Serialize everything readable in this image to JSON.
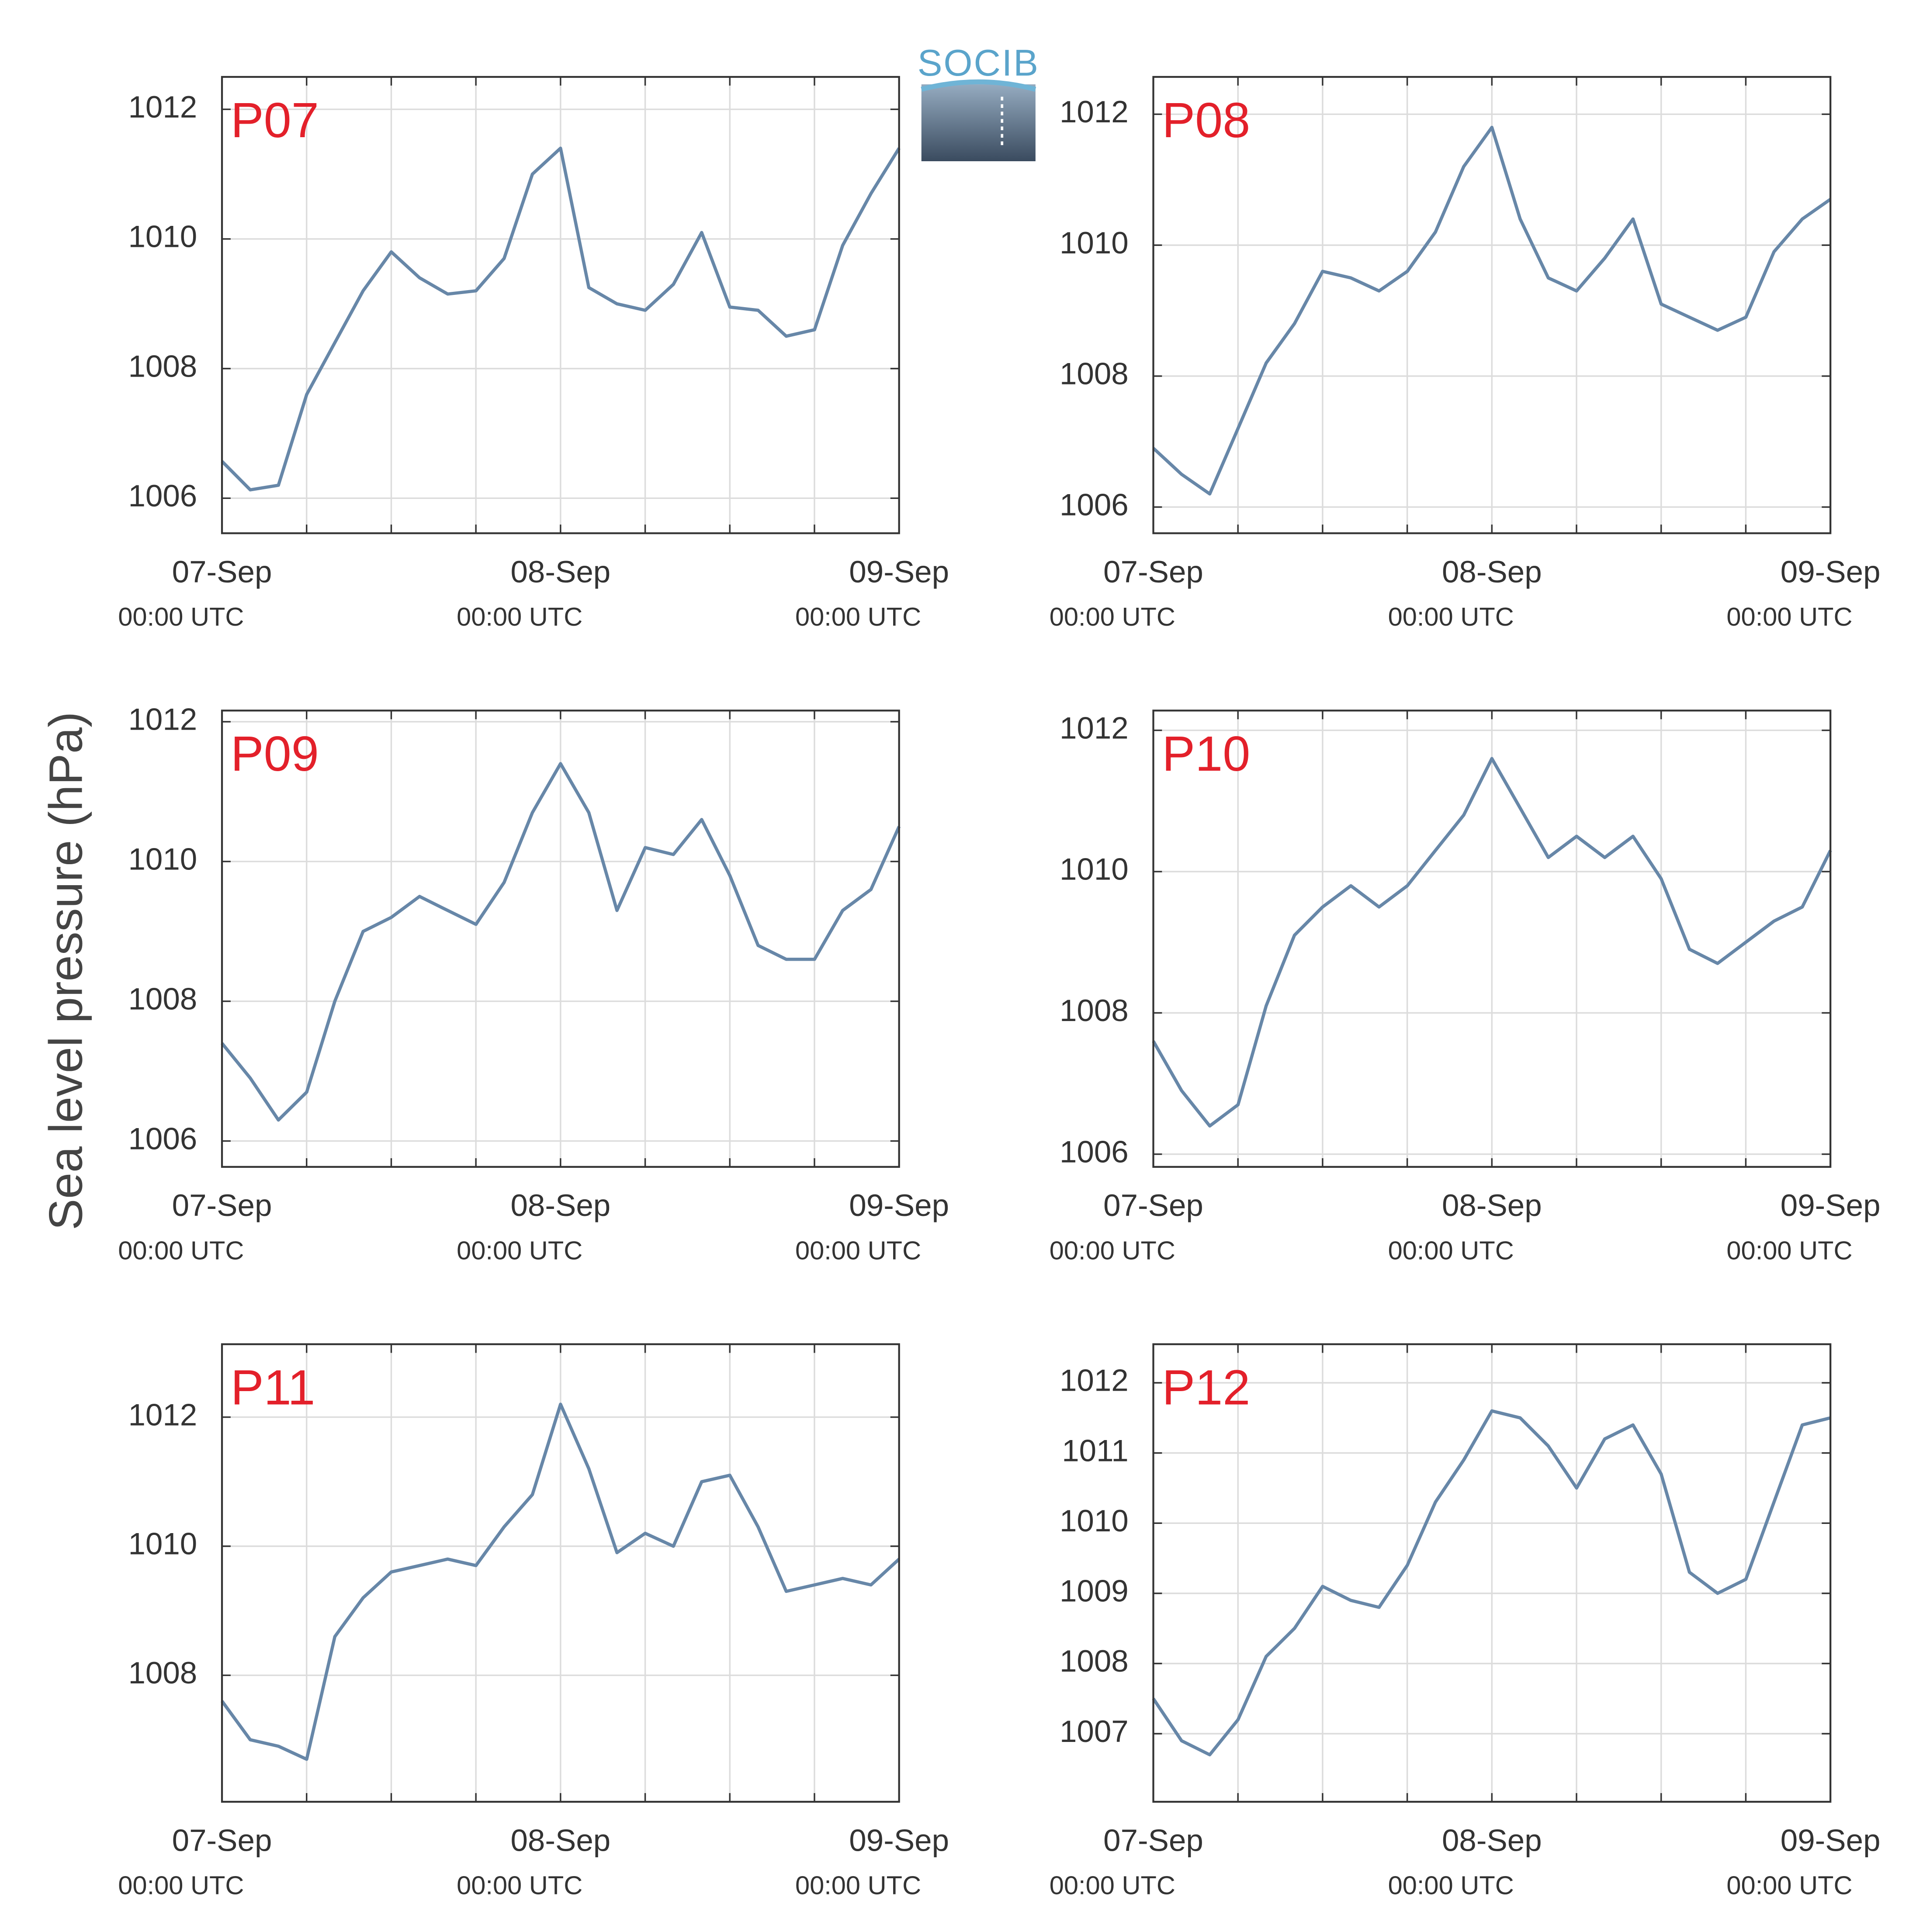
{
  "logo": "SOCIB",
  "ylabel": "Sea level pressure (hPa)",
  "chart_data": [
    {
      "type": "line",
      "title": "P07",
      "color": "#6787a8",
      "title_color": "#e3202a",
      "grid": true,
      "x": [
        0,
        2,
        4,
        6,
        8,
        10,
        12,
        14,
        16,
        18,
        20,
        22,
        24,
        26,
        28,
        30,
        32,
        34,
        36,
        38,
        40,
        42,
        44,
        46,
        48
      ],
      "values": [
        1006.57,
        1006.13,
        1006.2,
        1007.6,
        1008.4,
        1009.2,
        1009.8,
        1009.4,
        1009.15,
        1009.2,
        1009.7,
        1011.0,
        1011.4,
        1009.25,
        1009.0,
        1008.9,
        1009.3,
        1010.1,
        1008.95,
        1008.9,
        1008.5,
        1008.6,
        1009.9,
        1010.7,
        1011.4
      ],
      "xlim": [
        0,
        48
      ],
      "xticks": [
        {
          "value": 0,
          "label": "07-Sep",
          "sublabel": "00:00 UTC"
        },
        {
          "value": 24,
          "label": "08-Sep",
          "sublabel": "00:00 UTC"
        },
        {
          "value": 48,
          "label": "09-Sep",
          "sublabel": "00:00 UTC"
        }
      ],
      "xminorticks": [
        6,
        12,
        18,
        30,
        36,
        42
      ],
      "ylim": [
        1005.46,
        1012.5
      ],
      "yticks": [
        1006,
        1008,
        1010,
        1012
      ]
    },
    {
      "type": "line",
      "title": "P08",
      "color": "#6787a8",
      "title_color": "#e3202a",
      "grid": true,
      "x": [
        0,
        2,
        4,
        6,
        8,
        10,
        12,
        14,
        16,
        18,
        20,
        22,
        24,
        26,
        28,
        30,
        32,
        34,
        36,
        38,
        40,
        42,
        44,
        46,
        48
      ],
      "values": [
        1006.9,
        1006.5,
        1006.2,
        1007.2,
        1008.2,
        1008.8,
        1009.6,
        1009.5,
        1009.3,
        1009.6,
        1010.2,
        1011.2,
        1011.8,
        1010.4,
        1009.5,
        1009.3,
        1009.8,
        1010.4,
        1009.1,
        1008.9,
        1008.7,
        1008.9,
        1009.9,
        1010.4,
        1010.7
      ],
      "xlim": [
        0,
        48
      ],
      "xticks": [
        {
          "value": 0,
          "label": "07-Sep",
          "sublabel": "00:00 UTC"
        },
        {
          "value": 24,
          "label": "08-Sep",
          "sublabel": "00:00 UTC"
        },
        {
          "value": 48,
          "label": "09-Sep",
          "sublabel": "00:00 UTC"
        }
      ],
      "xminorticks": [
        6,
        12,
        18,
        30,
        36,
        42
      ],
      "ylim": [
        1005.6,
        1012.57
      ],
      "yticks": [
        1006,
        1008,
        1010,
        1012
      ]
    },
    {
      "type": "line",
      "title": "P09",
      "color": "#6787a8",
      "title_color": "#e3202a",
      "grid": true,
      "x": [
        0,
        2,
        4,
        6,
        8,
        10,
        12,
        14,
        16,
        18,
        20,
        22,
        24,
        26,
        28,
        30,
        32,
        34,
        36,
        38,
        40,
        42,
        44,
        46,
        48
      ],
      "values": [
        1007.4,
        1006.9,
        1006.3,
        1006.7,
        1008.0,
        1009.0,
        1009.2,
        1009.5,
        1009.3,
        1009.1,
        1009.7,
        1010.7,
        1011.4,
        1010.7,
        1009.3,
        1010.2,
        1010.1,
        1010.6,
        1009.8,
        1008.8,
        1008.6,
        1008.6,
        1009.3,
        1009.6,
        1010.5
      ],
      "xlim": [
        0,
        48
      ],
      "xticks": [
        {
          "value": 0,
          "label": "07-Sep",
          "sublabel": "00:00 UTC"
        },
        {
          "value": 24,
          "label": "08-Sep",
          "sublabel": "00:00 UTC"
        },
        {
          "value": 48,
          "label": "09-Sep",
          "sublabel": "00:00 UTC"
        }
      ],
      "xminorticks": [
        6,
        12,
        18,
        30,
        36,
        42
      ],
      "ylim": [
        1005.63,
        1012.16
      ],
      "yticks": [
        1006,
        1008,
        1010,
        1012
      ]
    },
    {
      "type": "line",
      "title": "P10",
      "color": "#6787a8",
      "title_color": "#e3202a",
      "grid": true,
      "x": [
        0,
        2,
        4,
        6,
        8,
        10,
        12,
        14,
        16,
        18,
        20,
        22,
        24,
        26,
        28,
        30,
        32,
        34,
        36,
        38,
        40,
        42,
        44,
        46,
        48
      ],
      "values": [
        1007.6,
        1006.9,
        1006.4,
        1006.7,
        1008.1,
        1009.1,
        1009.5,
        1009.8,
        1009.5,
        1009.8,
        1010.3,
        1010.8,
        1011.6,
        1010.9,
        1010.2,
        1010.5,
        1010.2,
        1010.5,
        1009.9,
        1008.9,
        1008.7,
        1009.0,
        1009.3,
        1009.5,
        1010.3
      ],
      "xlim": [
        0,
        48
      ],
      "xticks": [
        {
          "value": 0,
          "label": "07-Sep",
          "sublabel": "00:00 UTC"
        },
        {
          "value": 24,
          "label": "08-Sep",
          "sublabel": "00:00 UTC"
        },
        {
          "value": 48,
          "label": "09-Sep",
          "sublabel": "00:00 UTC"
        }
      ],
      "xminorticks": [
        6,
        12,
        18,
        30,
        36,
        42
      ],
      "ylim": [
        1005.82,
        1012.28
      ],
      "yticks": [
        1006,
        1008,
        1010,
        1012
      ]
    },
    {
      "type": "line",
      "title": "P11",
      "color": "#6787a8",
      "title_color": "#e3202a",
      "grid": true,
      "x": [
        0,
        2,
        4,
        6,
        8,
        10,
        12,
        14,
        16,
        18,
        20,
        22,
        24,
        26,
        28,
        30,
        32,
        34,
        36,
        38,
        40,
        42,
        44,
        46,
        48
      ],
      "values": [
        1007.6,
        1007.0,
        1006.9,
        1006.7,
        1008.6,
        1009.2,
        1009.6,
        1009.7,
        1009.8,
        1009.7,
        1010.3,
        1010.8,
        1012.2,
        1011.2,
        1009.9,
        1010.2,
        1010.0,
        1011.0,
        1011.1,
        1010.3,
        1009.3,
        1009.4,
        1009.5,
        1009.4,
        1009.8
      ],
      "xlim": [
        0,
        48
      ],
      "xticks": [
        {
          "value": 0,
          "label": "07-Sep",
          "sublabel": "00:00 UTC"
        },
        {
          "value": 24,
          "label": "08-Sep",
          "sublabel": "00:00 UTC"
        },
        {
          "value": 48,
          "label": "09-Sep",
          "sublabel": "00:00 UTC"
        }
      ],
      "xminorticks": [
        6,
        12,
        18,
        30,
        36,
        42
      ],
      "ylim": [
        1006.04,
        1013.13
      ],
      "yticks": [
        1008,
        1010,
        1012
      ]
    },
    {
      "type": "line",
      "title": "P12",
      "color": "#6787a8",
      "title_color": "#e3202a",
      "grid": true,
      "x": [
        0,
        2,
        4,
        6,
        8,
        10,
        12,
        14,
        16,
        18,
        20,
        22,
        24,
        26,
        28,
        30,
        32,
        34,
        36,
        38,
        40,
        42,
        44,
        46,
        48
      ],
      "values": [
        1007.5,
        1006.9,
        1006.7,
        1007.2,
        1008.1,
        1008.5,
        1009.1,
        1008.9,
        1008.8,
        1009.4,
        1010.3,
        1010.9,
        1011.6,
        1011.5,
        1011.1,
        1010.5,
        1011.2,
        1011.4,
        1010.7,
        1009.3,
        1009.0,
        1009.2,
        1010.3,
        1011.4,
        1011.5
      ],
      "xlim": [
        0,
        48
      ],
      "xticks": [
        {
          "value": 0,
          "label": "07-Sep",
          "sublabel": "00:00 UTC"
        },
        {
          "value": 24,
          "label": "08-Sep",
          "sublabel": "00:00 UTC"
        },
        {
          "value": 48,
          "label": "09-Sep",
          "sublabel": "00:00 UTC"
        }
      ],
      "xminorticks": [
        6,
        12,
        18,
        30,
        36,
        42
      ],
      "ylim": [
        1006.03,
        1012.55
      ],
      "yticks": [
        1007,
        1008,
        1009,
        1010,
        1011,
        1012
      ]
    }
  ]
}
